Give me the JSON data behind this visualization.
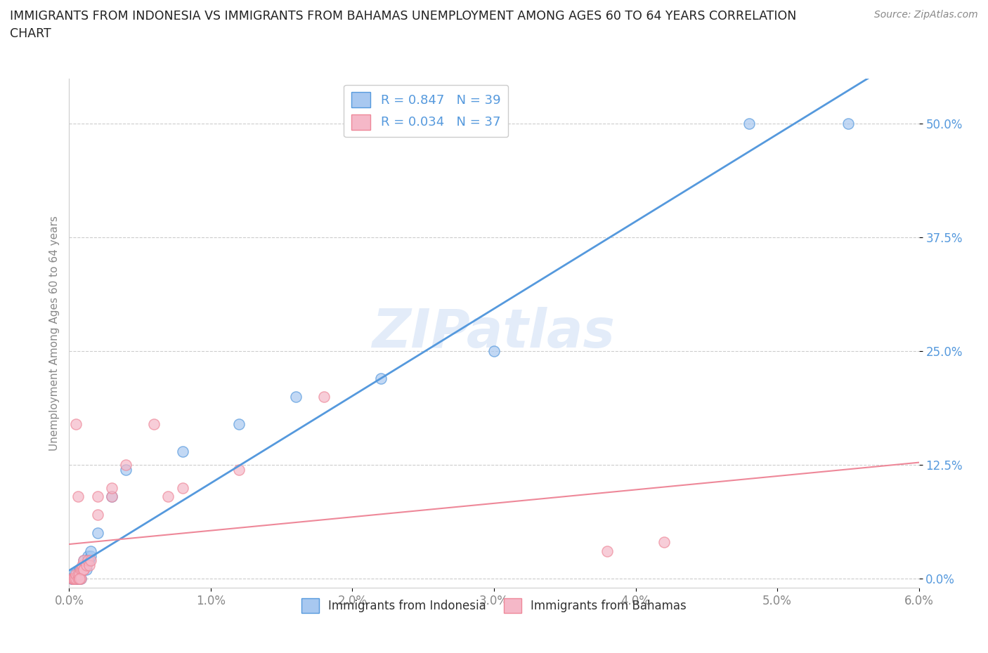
{
  "title_line1": "IMMIGRANTS FROM INDONESIA VS IMMIGRANTS FROM BAHAMAS UNEMPLOYMENT AMONG AGES 60 TO 64 YEARS CORRELATION",
  "title_line2": "CHART",
  "source": "Source: ZipAtlas.com",
  "ylabel": "Unemployment Among Ages 60 to 64 years",
  "xlim": [
    0.0,
    0.06
  ],
  "ylim": [
    -0.01,
    0.55
  ],
  "yticks": [
    0.0,
    0.125,
    0.25,
    0.375,
    0.5
  ],
  "ytick_labels": [
    "0.0%",
    "12.5%",
    "25.0%",
    "37.5%",
    "50.0%"
  ],
  "xticks": [
    0.0,
    0.01,
    0.02,
    0.03,
    0.04,
    0.05,
    0.06
  ],
  "xtick_labels": [
    "0.0%",
    "1.0%",
    "2.0%",
    "3.0%",
    "4.0%",
    "5.0%",
    "6.0%"
  ],
  "indonesia_color": "#a8c8f0",
  "bahamas_color": "#f5b8c8",
  "indonesia_line_color": "#5599dd",
  "bahamas_line_color": "#ee8899",
  "R_indonesia": 0.847,
  "N_indonesia": 39,
  "R_bahamas": 0.034,
  "N_bahamas": 37,
  "legend_label_1": "Immigrants from Indonesia",
  "legend_label_2": "Immigrants from Bahamas",
  "watermark": "ZIPatlas",
  "background_color": "#ffffff",
  "grid_color": "#cccccc",
  "indonesia_x": [
    0.0002,
    0.0002,
    0.0003,
    0.0003,
    0.0004,
    0.0004,
    0.0005,
    0.0005,
    0.0005,
    0.0006,
    0.0006,
    0.0006,
    0.0007,
    0.0007,
    0.0007,
    0.0008,
    0.0008,
    0.0009,
    0.0009,
    0.001,
    0.001,
    0.001,
    0.0012,
    0.0012,
    0.0013,
    0.0013,
    0.0014,
    0.0015,
    0.0015,
    0.002,
    0.003,
    0.004,
    0.008,
    0.012,
    0.016,
    0.022,
    0.03,
    0.048,
    0.055
  ],
  "indonesia_y": [
    0.0,
    0.0,
    0.0,
    0.0,
    0.0,
    0.005,
    0.0,
    0.0,
    0.0,
    0.0,
    0.0,
    0.005,
    0.0,
    0.01,
    0.01,
    0.0,
    0.01,
    0.01,
    0.01,
    0.01,
    0.015,
    0.02,
    0.01,
    0.015,
    0.02,
    0.025,
    0.02,
    0.025,
    0.03,
    0.05,
    0.09,
    0.12,
    0.14,
    0.17,
    0.2,
    0.22,
    0.25,
    0.5,
    0.5
  ],
  "bahamas_x": [
    0.0002,
    0.0003,
    0.0003,
    0.0004,
    0.0004,
    0.0005,
    0.0005,
    0.0006,
    0.0006,
    0.0007,
    0.0007,
    0.0008,
    0.0008,
    0.0009,
    0.0009,
    0.001,
    0.001,
    0.001,
    0.0012,
    0.0013,
    0.0014,
    0.0015,
    0.002,
    0.002,
    0.003,
    0.003,
    0.004,
    0.006,
    0.007,
    0.008,
    0.012,
    0.018,
    0.038,
    0.042,
    0.0005,
    0.0006,
    0.0007
  ],
  "bahamas_y": [
    0.0,
    0.0,
    0.0,
    0.0,
    0.0,
    0.0,
    0.005,
    0.0,
    0.005,
    0.0,
    0.005,
    0.0,
    0.01,
    0.01,
    0.015,
    0.01,
    0.01,
    0.02,
    0.015,
    0.02,
    0.015,
    0.02,
    0.07,
    0.09,
    0.09,
    0.1,
    0.125,
    0.17,
    0.09,
    0.1,
    0.12,
    0.2,
    0.03,
    0.04,
    0.17,
    0.09,
    0.0
  ]
}
